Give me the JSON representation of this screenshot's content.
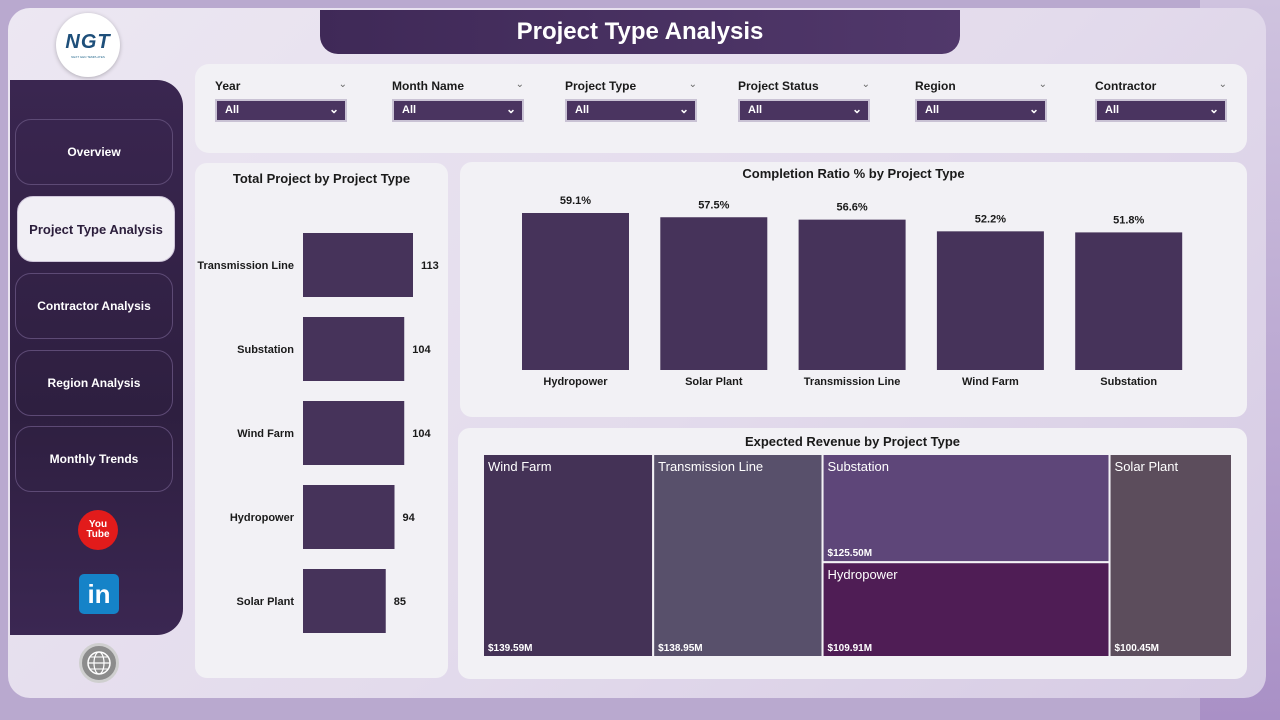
{
  "app": {
    "title": "Project Type Analysis",
    "logo_text": "NGT",
    "logo_subtext": "NEXT GEN TEMPLATES"
  },
  "sidebar": {
    "items": [
      {
        "label": "Overview"
      },
      {
        "label": "Project Type Analysis",
        "active": true
      },
      {
        "label": "Contractor Analysis"
      },
      {
        "label": "Region Analysis"
      },
      {
        "label": "Monthly Trends"
      }
    ],
    "social": {
      "youtube_text": "You Tube",
      "linkedin_text": "in"
    }
  },
  "slicers": [
    {
      "label": "Year",
      "value": "All"
    },
    {
      "label": "Month Name",
      "value": "All"
    },
    {
      "label": "Project Type",
      "value": "All"
    },
    {
      "label": "Project Status",
      "value": "All"
    },
    {
      "label": "Region",
      "value": "All"
    },
    {
      "label": "Contractor",
      "value": "All"
    }
  ],
  "colors": {
    "bar": "#46335a",
    "accent": "#3f2957"
  },
  "chart_data": [
    {
      "type": "bar",
      "orientation": "horizontal",
      "title": "Total Project by Project Type",
      "categories": [
        "Transmission Line",
        "Substation",
        "Wind Farm",
        "Hydropower",
        "Solar Plant"
      ],
      "values": [
        113,
        104,
        104,
        94,
        85
      ],
      "data_labels": [
        "113",
        "104",
        "104",
        "94",
        "85"
      ]
    },
    {
      "type": "bar",
      "orientation": "vertical",
      "title": "Completion Ratio % by Project Type",
      "categories": [
        "Hydropower",
        "Solar Plant",
        "Transmission Line",
        "Wind Farm",
        "Substation"
      ],
      "values": [
        59.1,
        57.5,
        56.6,
        52.2,
        51.8
      ],
      "data_labels": [
        "59.1%",
        "57.5%",
        "56.6%",
        "52.2%",
        "51.8%"
      ]
    },
    {
      "type": "treemap",
      "title": "Expected Revenue by Project Type",
      "items": [
        {
          "name": "Wind Farm",
          "value": 139.59,
          "label": "$139.59M",
          "color": "#443256"
        },
        {
          "name": "Transmission Line",
          "value": 138.95,
          "label": "$138.95M",
          "color": "#58506b"
        },
        {
          "name": "Substation",
          "value": 125.5,
          "label": "$125.50M",
          "color": "#5e4679"
        },
        {
          "name": "Hydropower",
          "value": 109.91,
          "label": "$109.91M",
          "color": "#4f1d55"
        },
        {
          "name": "Solar Plant",
          "value": 100.45,
          "label": "$100.45M",
          "color": "#5c4d5c"
        }
      ]
    }
  ]
}
